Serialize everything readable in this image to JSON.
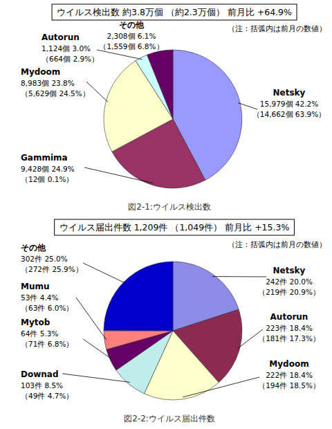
{
  "chart_data": [
    {
      "type": "pie",
      "title": "ウイルス検出数 約3.8万個 （約2.3万個） 前月比 +64.9%",
      "note": "（注：括弧内は前月の数値）",
      "caption": "図2-1:ウイルス検出数",
      "categories": [
        "Netsky",
        "Gammima",
        "Mydoom",
        "Autorun",
        "その他"
      ],
      "values": [
        15979,
        9428,
        8983,
        1124,
        2308
      ],
      "value_labels": [
        "15,979個 42.2%",
        "9,428個 24.9%",
        "8,983個 23.8%",
        "1,124個 3.0%",
        "2,308個 6.1%"
      ],
      "previous_labels": [
        "（14,662個 63.9%）",
        "（12個 0.1%）",
        "（5,629個 24.5%）",
        "（664個 2.9%）",
        "（1,559個 6.8%）"
      ],
      "colors": [
        "#9999ff",
        "#993366",
        "#ffffcc",
        "#ccffff",
        "#660066"
      ],
      "data_labels": true
    },
    {
      "type": "pie",
      "title": "ウイルス届出件数 1,209件 （1,049件） 前月比 +15.3%",
      "note": "（注：括弧内は前月の数値）",
      "caption": "図2-2:ウイルス届出件数",
      "categories": [
        "Netsky",
        "Autorun",
        "Mydoom",
        "Downad",
        "Mytob",
        "Mumu",
        "その他"
      ],
      "values": [
        242,
        223,
        222,
        103,
        64,
        53,
        302
      ],
      "value_labels": [
        "242件 20.0%",
        "223件 18.4%",
        "222件 18.4%",
        "103件 8.5%",
        "64件 5.3%",
        "53件 4.4%",
        "302件 25.0%"
      ],
      "previous_labels": [
        "（219件 20.9%）",
        "（181件 17.3%）",
        "（194件 18.5%）",
        "（49件 4.7%）",
        "（71件 6.8%）",
        "（63件 6.0%）",
        "（272件 25.9%）"
      ],
      "colors": [
        "#8c8ce6",
        "#8b2a52",
        "#ffffcc",
        "#c0ecec",
        "#660066",
        "#ff7f7f",
        "#0000cc"
      ],
      "data_labels": true
    }
  ]
}
